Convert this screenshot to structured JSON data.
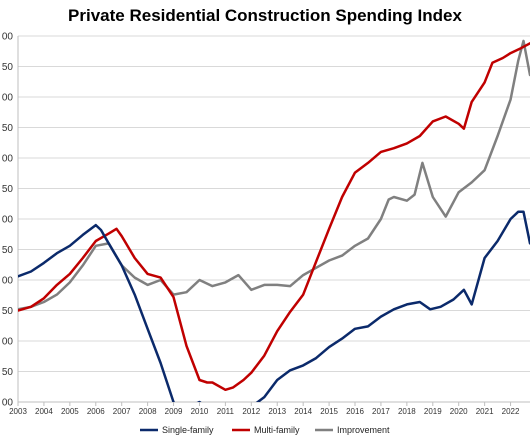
{
  "chart_data": {
    "type": "line",
    "title": "Private Residential Construction Spending Index",
    "xlabel": "",
    "ylabel": "",
    "xlim": [
      2003,
      2022.75
    ],
    "ylim": [
      0,
      300
    ],
    "y_tick_labels": [
      "00",
      "50",
      "00",
      "50",
      "00",
      "50",
      "00",
      "50",
      "00",
      "50",
      "00",
      "50",
      "00"
    ],
    "x_ticks": [
      2003,
      2004,
      2005,
      2006,
      2007,
      2008,
      2009,
      2010,
      2011,
      2012,
      2013,
      2014,
      2015,
      2016,
      2017,
      2018,
      2019,
      2020,
      2021,
      2022
    ],
    "grid": true,
    "legend_position": "bottom",
    "series": [
      {
        "name": "Single-family",
        "color": "#0b2a6b",
        "x": [
          2003,
          2003.5,
          2004,
          2004.5,
          2005,
          2005.5,
          2006,
          2006.2,
          2006.5,
          2007,
          2007.5,
          2008,
          2008.5,
          2009,
          2009.3,
          2009.6,
          2010,
          2010.5,
          2011,
          2011.5,
          2012,
          2012.5,
          2013,
          2013.5,
          2014,
          2014.5,
          2015,
          2015.5,
          2016,
          2016.5,
          2017,
          2017.5,
          2018,
          2018.5,
          2018.9,
          2019.3,
          2019.8,
          2020.2,
          2020.5,
          2021,
          2021.5,
          2022,
          2022.3,
          2022.5,
          2022.75
        ],
        "y": [
          103,
          107,
          114,
          122,
          128,
          137,
          145,
          141,
          130,
          112,
          88,
          60,
          32,
          0,
          -10,
          -4,
          0,
          -8,
          -8,
          -6,
          -4,
          4,
          18,
          26,
          30,
          36,
          45,
          52,
          60,
          62,
          70,
          76,
          80,
          82,
          76,
          78,
          84,
          92,
          80,
          118,
          132,
          150,
          156,
          156,
          130
        ]
      },
      {
        "name": "Multi-family",
        "color": "#c00000",
        "x": [
          2003,
          2003.5,
          2004,
          2004.5,
          2005,
          2005.5,
          2006,
          2006.5,
          2006.8,
          2007,
          2007.5,
          2008,
          2008.5,
          2009,
          2009.5,
          2010,
          2010.3,
          2010.5,
          2011,
          2011.3,
          2011.7,
          2012,
          2012.5,
          2013,
          2013.5,
          2014,
          2014.5,
          2015,
          2015.5,
          2016,
          2016.5,
          2017,
          2017.5,
          2018,
          2018.5,
          2019,
          2019.5,
          2020,
          2020.2,
          2020.5,
          2021,
          2021.3,
          2021.7,
          2022,
          2022.4,
          2022.75
        ],
        "y": [
          75,
          78,
          85,
          96,
          105,
          118,
          132,
          138,
          142,
          136,
          118,
          105,
          102,
          86,
          46,
          18,
          16,
          16,
          10,
          12,
          18,
          24,
          38,
          58,
          74,
          88,
          115,
          142,
          168,
          188,
          196,
          205,
          208,
          212,
          218,
          230,
          234,
          228,
          224,
          246,
          262,
          278,
          282,
          286,
          290,
          294
        ]
      },
      {
        "name": "Improvement",
        "color": "#808080",
        "x": [
          2003,
          2003.5,
          2004,
          2004.5,
          2005,
          2005.5,
          2006,
          2006.5,
          2007,
          2007.5,
          2008,
          2008.5,
          2009,
          2009.5,
          2010,
          2010.5,
          2011,
          2011.5,
          2012,
          2012.5,
          2013,
          2013.5,
          2014,
          2014.5,
          2015,
          2015.5,
          2016,
          2016.5,
          2017,
          2017.3,
          2017.5,
          2018,
          2018.3,
          2018.6,
          2019,
          2019.5,
          2020,
          2020.5,
          2021,
          2021.5,
          2022,
          2022.3,
          2022.5,
          2022.75
        ],
        "y": [
          76,
          78,
          82,
          88,
          98,
          112,
          128,
          130,
          112,
          102,
          96,
          100,
          88,
          90,
          100,
          95,
          98,
          104,
          92,
          96,
          96,
          95,
          104,
          110,
          116,
          120,
          128,
          134,
          150,
          166,
          168,
          165,
          170,
          196,
          168,
          152,
          172,
          180,
          190,
          218,
          248,
          280,
          296,
          268
        ]
      }
    ]
  }
}
